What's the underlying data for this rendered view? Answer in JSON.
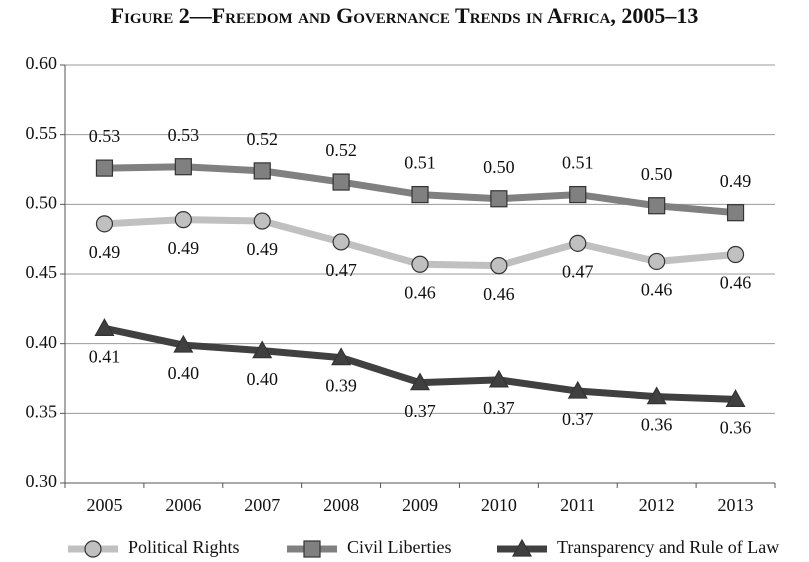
{
  "chart_data": {
    "type": "line",
    "title": "Figure 2—Freedom and Governance Trends in Africa, 2005–13",
    "categories": [
      "2005",
      "2006",
      "2007",
      "2008",
      "2009",
      "2010",
      "2011",
      "2012",
      "2013"
    ],
    "series": [
      {
        "name": "Political Rights",
        "color": "#c0c0c0",
        "marker": "circle",
        "label_position": "below",
        "values": [
          0.486,
          0.489,
          0.488,
          0.473,
          0.457,
          0.456,
          0.472,
          0.459,
          0.464
        ],
        "value_labels": [
          "0.49",
          "0.49",
          "0.49",
          "0.47",
          "0.46",
          "0.46",
          "0.47",
          "0.46",
          "0.46"
        ]
      },
      {
        "name": "Civil Liberties",
        "color": "#808080",
        "marker": "square",
        "label_position": "above",
        "values": [
          0.526,
          0.527,
          0.524,
          0.516,
          0.507,
          0.504,
          0.507,
          0.499,
          0.494
        ],
        "value_labels": [
          "0.53",
          "0.53",
          "0.52",
          "0.52",
          "0.51",
          "0.50",
          "0.51",
          "0.50",
          "0.49"
        ]
      },
      {
        "name": "Transparency and Rule of Law",
        "color": "#404040",
        "marker": "triangle",
        "label_position": "below",
        "values": [
          0.411,
          0.399,
          0.395,
          0.39,
          0.372,
          0.374,
          0.366,
          0.362,
          0.36
        ],
        "value_labels": [
          "0.41",
          "0.40",
          "0.40",
          "0.39",
          "0.37",
          "0.37",
          "0.37",
          "0.36",
          "0.36"
        ]
      }
    ],
    "ylim": [
      0.3,
      0.6
    ],
    "yticks": [
      {
        "value": 0.3,
        "label": "0.30"
      },
      0.35,
      {
        "value": 0.4,
        "label": "0.40"
      },
      0.45,
      {
        "value": 0.5,
        "label": "0.50"
      },
      0.55,
      {
        "value": 0.6,
        "label": "0.60"
      }
    ],
    "grid": true,
    "legend": "bottom"
  }
}
